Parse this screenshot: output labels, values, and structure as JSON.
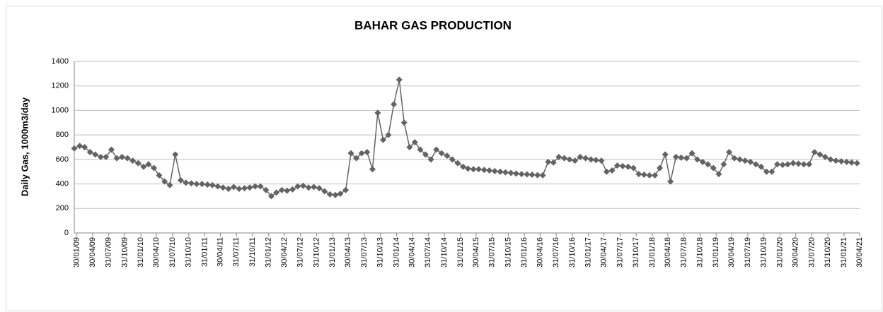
{
  "chart_data": {
    "type": "line",
    "title": "BAHAR GAS PRODUCTION",
    "y_label": "Daily Gas, 1000m3/day",
    "color": "#636363",
    "marker": "diamond",
    "grid": true,
    "ylim": [
      0,
      1400
    ],
    "yticks": [
      0,
      200,
      400,
      600,
      800,
      1000,
      1200,
      1400
    ],
    "xlim": [
      "2009-01-15",
      "2021-04-30"
    ],
    "xticks": [
      {
        "value": "2009-01-30",
        "label": "30/01/09"
      },
      {
        "value": "2009-04-30",
        "label": "30/04/09"
      },
      {
        "value": "2009-07-31",
        "label": "31/07/09"
      },
      {
        "value": "2009-10-31",
        "label": "31/10/09"
      },
      {
        "value": "2010-01-31",
        "label": "31/01/10"
      },
      {
        "value": "2010-04-30",
        "label": "30/04/10"
      },
      {
        "value": "2010-07-31",
        "label": "31/07/10"
      },
      {
        "value": "2010-10-31",
        "label": "31/10/10"
      },
      {
        "value": "2011-01-31",
        "label": "31/01/11"
      },
      {
        "value": "2011-04-30",
        "label": "30/04/11"
      },
      {
        "value": "2011-07-31",
        "label": "31/07/11"
      },
      {
        "value": "2011-10-31",
        "label": "31/10/11"
      },
      {
        "value": "2012-01-31",
        "label": "31/01/12"
      },
      {
        "value": "2012-04-30",
        "label": "30/04/12"
      },
      {
        "value": "2012-07-31",
        "label": "31/07/12"
      },
      {
        "value": "2012-10-31",
        "label": "31/10/12"
      },
      {
        "value": "2013-01-31",
        "label": "31/01/13"
      },
      {
        "value": "2013-04-30",
        "label": "30/04/13"
      },
      {
        "value": "2013-07-31",
        "label": "31/07/13"
      },
      {
        "value": "2013-10-31",
        "label": "31/10/13"
      },
      {
        "value": "2014-01-31",
        "label": "31/01/14"
      },
      {
        "value": "2014-04-30",
        "label": "30/04/14"
      },
      {
        "value": "2014-07-31",
        "label": "31/07/14"
      },
      {
        "value": "2014-10-31",
        "label": "31/10/14"
      },
      {
        "value": "2015-01-31",
        "label": "31/01/15"
      },
      {
        "value": "2015-04-30",
        "label": "30/04/15"
      },
      {
        "value": "2015-07-31",
        "label": "31/07/15"
      },
      {
        "value": "2015-10-31",
        "label": "31/10/15"
      },
      {
        "value": "2016-01-31",
        "label": "31/01/16"
      },
      {
        "value": "2016-04-30",
        "label": "30/04/16"
      },
      {
        "value": "2016-07-31",
        "label": "31/07/16"
      },
      {
        "value": "2016-10-31",
        "label": "31/10/16"
      },
      {
        "value": "2017-01-31",
        "label": "31/01/17"
      },
      {
        "value": "2017-04-30",
        "label": "30/04/17"
      },
      {
        "value": "2017-07-31",
        "label": "31/07/17"
      },
      {
        "value": "2017-10-31",
        "label": "31/10/17"
      },
      {
        "value": "2018-01-31",
        "label": "31/01/18"
      },
      {
        "value": "2018-04-30",
        "label": "30/04/18"
      },
      {
        "value": "2018-07-31",
        "label": "31/07/18"
      },
      {
        "value": "2018-10-31",
        "label": "31/10/18"
      },
      {
        "value": "2019-01-31",
        "label": "31/01/19"
      },
      {
        "value": "2019-04-30",
        "label": "30/04/19"
      },
      {
        "value": "2019-07-31",
        "label": "31/07/19"
      },
      {
        "value": "2019-10-31",
        "label": "31/10/19"
      },
      {
        "value": "2020-01-31",
        "label": "31/01/20"
      },
      {
        "value": "2020-04-30",
        "label": "30/04/20"
      },
      {
        "value": "2020-07-31",
        "label": "31/07/20"
      },
      {
        "value": "2020-10-31",
        "label": "31/10/20"
      },
      {
        "value": "2021-01-31",
        "label": "31/01/21"
      },
      {
        "value": "2021-04-30",
        "label": "30/04/21"
      }
    ],
    "x": [
      "2009-01-15",
      "2009-02-15",
      "2009-03-15",
      "2009-04-15",
      "2009-05-15",
      "2009-06-15",
      "2009-07-15",
      "2009-08-15",
      "2009-09-15",
      "2009-10-15",
      "2009-11-15",
      "2009-12-15",
      "2010-01-15",
      "2010-02-15",
      "2010-03-15",
      "2010-04-15",
      "2010-05-15",
      "2010-06-15",
      "2010-07-15",
      "2010-08-15",
      "2010-09-15",
      "2010-10-15",
      "2010-11-15",
      "2010-12-15",
      "2011-01-15",
      "2011-02-15",
      "2011-03-15",
      "2011-04-15",
      "2011-05-15",
      "2011-06-15",
      "2011-07-15",
      "2011-08-15",
      "2011-09-15",
      "2011-10-15",
      "2011-11-15",
      "2011-12-15",
      "2012-01-15",
      "2012-02-15",
      "2012-03-15",
      "2012-04-15",
      "2012-05-15",
      "2012-06-15",
      "2012-07-15",
      "2012-08-15",
      "2012-09-15",
      "2012-10-15",
      "2012-11-15",
      "2012-12-15",
      "2013-01-15",
      "2013-02-15",
      "2013-03-15",
      "2013-04-15",
      "2013-05-15",
      "2013-06-15",
      "2013-07-15",
      "2013-08-15",
      "2013-09-15",
      "2013-10-15",
      "2013-11-15",
      "2013-12-15",
      "2014-01-15",
      "2014-02-15",
      "2014-03-15",
      "2014-04-15",
      "2014-05-15",
      "2014-06-15",
      "2014-07-15",
      "2014-08-15",
      "2014-09-15",
      "2014-10-15",
      "2014-11-15",
      "2014-12-15",
      "2015-01-15",
      "2015-02-15",
      "2015-03-15",
      "2015-04-15",
      "2015-05-15",
      "2015-06-15",
      "2015-07-15",
      "2015-08-15",
      "2015-09-15",
      "2015-10-15",
      "2015-11-15",
      "2015-12-15",
      "2016-01-15",
      "2016-02-15",
      "2016-03-15",
      "2016-04-15",
      "2016-05-15",
      "2016-06-15",
      "2016-07-15",
      "2016-08-15",
      "2016-09-15",
      "2016-10-15",
      "2016-11-15",
      "2016-12-15",
      "2017-01-15",
      "2017-02-15",
      "2017-03-15",
      "2017-04-15",
      "2017-05-15",
      "2017-06-15",
      "2017-07-15",
      "2017-08-15",
      "2017-09-15",
      "2017-10-15",
      "2017-11-15",
      "2017-12-15",
      "2018-01-15",
      "2018-02-15",
      "2018-03-15",
      "2018-04-15",
      "2018-05-15",
      "2018-06-15",
      "2018-07-15",
      "2018-08-15",
      "2018-09-15",
      "2018-10-15",
      "2018-11-15",
      "2018-12-15",
      "2019-01-15",
      "2019-02-15",
      "2019-03-15",
      "2019-04-15",
      "2019-05-15",
      "2019-06-15",
      "2019-07-15",
      "2019-08-15",
      "2019-09-15",
      "2019-10-15",
      "2019-11-15",
      "2019-12-15",
      "2020-01-15",
      "2020-02-15",
      "2020-03-15",
      "2020-04-15",
      "2020-05-15",
      "2020-06-15",
      "2020-07-15",
      "2020-08-15",
      "2020-09-15",
      "2020-10-15",
      "2020-11-15",
      "2020-12-15",
      "2021-01-15",
      "2021-02-15",
      "2021-03-15",
      "2021-04-15"
    ],
    "values": [
      690,
      710,
      700,
      660,
      640,
      620,
      620,
      680,
      610,
      620,
      610,
      590,
      570,
      540,
      560,
      530,
      470,
      420,
      390,
      640,
      430,
      410,
      405,
      400,
      400,
      395,
      390,
      380,
      370,
      360,
      375,
      360,
      365,
      370,
      380,
      380,
      350,
      300,
      330,
      350,
      345,
      355,
      380,
      385,
      370,
      375,
      365,
      340,
      315,
      310,
      320,
      350,
      650,
      610,
      650,
      660,
      520,
      980,
      760,
      800,
      1050,
      1250,
      900,
      700,
      740,
      680,
      640,
      600,
      680,
      650,
      630,
      600,
      570,
      540,
      525,
      520,
      520,
      515,
      510,
      505,
      500,
      495,
      490,
      485,
      480,
      478,
      475,
      472,
      470,
      580,
      575,
      620,
      610,
      600,
      590,
      620,
      610,
      600,
      595,
      590,
      500,
      510,
      550,
      545,
      540,
      530,
      480,
      475,
      470,
      470,
      530,
      640,
      420,
      620,
      615,
      610,
      650,
      600,
      580,
      560,
      530,
      480,
      560,
      660,
      610,
      600,
      590,
      580,
      560,
      540,
      500,
      500,
      560,
      555,
      560,
      570,
      565,
      560,
      560,
      660,
      640,
      620,
      600,
      590,
      585,
      580,
      575,
      570
    ]
  }
}
